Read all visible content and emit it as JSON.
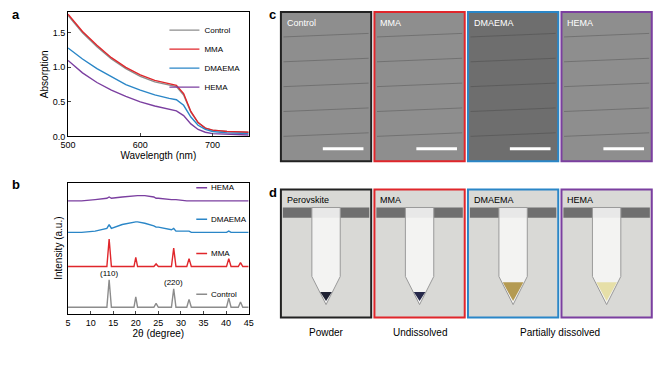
{
  "chart_data": [
    {
      "panel": "a",
      "type": "line",
      "x_label": "Wavelength (nm)",
      "y_label": "Absorption",
      "x": [
        500,
        520,
        540,
        560,
        580,
        600,
        620,
        640,
        650,
        660,
        670,
        680,
        690,
        700,
        720,
        750
      ],
      "series": [
        {
          "name": "Control",
          "color": "#8c8c8c",
          "values": [
            1.75,
            1.5,
            1.3,
            1.12,
            0.98,
            0.87,
            0.79,
            0.74,
            0.72,
            0.6,
            0.35,
            0.2,
            0.12,
            0.09,
            0.07,
            0.06
          ]
        },
        {
          "name": "MMA",
          "color": "#e0262b",
          "values": [
            1.77,
            1.52,
            1.32,
            1.14,
            1.0,
            0.89,
            0.81,
            0.76,
            0.74,
            0.62,
            0.36,
            0.2,
            0.12,
            0.09,
            0.07,
            0.06
          ]
        },
        {
          "name": "DMAEMA",
          "color": "#2a86c7",
          "values": [
            1.28,
            1.12,
            0.98,
            0.86,
            0.75,
            0.67,
            0.6,
            0.55,
            0.53,
            0.45,
            0.28,
            0.16,
            0.1,
            0.07,
            0.05,
            0.04
          ]
        },
        {
          "name": "HEMA",
          "color": "#7b3fa0",
          "values": [
            1.1,
            0.92,
            0.78,
            0.67,
            0.58,
            0.5,
            0.44,
            0.39,
            0.37,
            0.3,
            0.18,
            0.1,
            0.06,
            0.04,
            0.03,
            0.02
          ]
        }
      ],
      "xlim": [
        500,
        750
      ],
      "xticks": [
        500,
        600,
        700
      ],
      "ylim": [
        0,
        1.8
      ],
      "yticks": [
        {
          "value": 0,
          "label": "0.0"
        },
        0.5,
        {
          "value": 1,
          "label": "1.0"
        },
        1.5
      ],
      "legend": "upper right"
    },
    {
      "panel": "b",
      "type": "line",
      "x_label": "2θ (degree)",
      "y_label": "Intensity (a.u.)",
      "x": [
        5,
        8,
        11,
        13.6,
        14.1,
        14.6,
        17,
        19.6,
        20,
        20.4,
        22,
        24,
        24.5,
        25,
        27.9,
        28.4,
        28.9,
        31.3,
        31.8,
        32.3,
        35,
        38,
        40.1,
        40.6,
        41.1,
        42.7,
        43.2,
        43.7,
        45
      ],
      "series": [
        {
          "name": "HEMA",
          "color": "#7b3fa0",
          "values": [
            8.6,
            8.6,
            8.7,
            8.8,
            8.9,
            8.8,
            8.9,
            9.0,
            9.0,
            9.0,
            9.0,
            8.9,
            8.8,
            8.8,
            8.7,
            8.7,
            8.7,
            8.6,
            8.6,
            8.6,
            8.6,
            8.6,
            8.6,
            8.6,
            8.6,
            8.6,
            8.6,
            8.6,
            8.6
          ]
        },
        {
          "name": "DMAEMA",
          "color": "#2a86c7",
          "values": [
            6.2,
            6.2,
            6.3,
            6.5,
            6.8,
            6.5,
            6.8,
            7.0,
            7.0,
            7.0,
            6.9,
            6.7,
            6.6,
            6.6,
            6.4,
            6.5,
            6.3,
            6.3,
            6.3,
            6.2,
            6.2,
            6.2,
            6.2,
            6.3,
            6.2,
            6.2,
            6.2,
            6.2,
            6.2
          ]
        },
        {
          "name": "MMA",
          "color": "#e0262b",
          "values": [
            3.6,
            3.6,
            3.6,
            3.6,
            5.7,
            3.6,
            3.6,
            3.6,
            4.3,
            3.6,
            3.6,
            3.6,
            3.8,
            3.6,
            3.6,
            5.0,
            3.6,
            3.6,
            4.2,
            3.6,
            3.6,
            3.6,
            3.6,
            4.2,
            3.6,
            3.6,
            3.9,
            3.6,
            3.6
          ]
        },
        {
          "name": "Control",
          "color": "#8c8c8c",
          "values": [
            0.5,
            0.5,
            0.5,
            0.5,
            2.6,
            0.5,
            0.5,
            0.5,
            1.3,
            0.5,
            0.5,
            0.5,
            0.8,
            0.5,
            0.5,
            1.9,
            0.5,
            0.5,
            1.1,
            0.5,
            0.5,
            0.5,
            0.5,
            1.2,
            0.5,
            0.5,
            0.9,
            0.5,
            0.5
          ]
        }
      ],
      "xlim": [
        5,
        45
      ],
      "xticks": [
        5,
        10,
        15,
        20,
        25,
        30,
        35,
        40,
        45
      ],
      "ylim": [
        0,
        10
      ],
      "yticks": [],
      "tick_labels": "x",
      "legend": "inline",
      "annotations": [
        {
          "text": "(110)",
          "x": 14.1,
          "y": 2.6
        },
        {
          "text": "(220)",
          "x": 28.4,
          "y": 1.9
        }
      ]
    }
  ],
  "panels": [
    {
      "panel": "c",
      "images": [
        {
          "label": "Control",
          "color": "#222222"
        },
        {
          "label": "MMA",
          "color": "#e0262b"
        },
        {
          "label": "DMAEMA",
          "color": "#2a86c7"
        },
        {
          "label": "HEMA",
          "color": "#7b3fa0"
        }
      ]
    },
    {
      "panel": "d",
      "images": [
        {
          "label": "Perovskite",
          "color": "#222222",
          "caption": "Powder"
        },
        {
          "label": "MMA",
          "color": "#e0262b",
          "caption": "Undissolved"
        },
        {
          "label": "DMAEMA",
          "color": "#2a86c7",
          "caption": "Partially dissolved"
        },
        {
          "label": "HEMA",
          "color": "#7b3fa0",
          "caption": "Partially dissolved"
        }
      ]
    }
  ]
}
